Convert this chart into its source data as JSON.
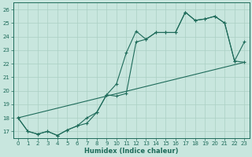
{
  "xlabel": "Humidex (Indice chaleur)",
  "bg_color": "#c8e6de",
  "line_color": "#1e6b5a",
  "grid_color": "#aad0c4",
  "xlim": [
    -0.5,
    23.5
  ],
  "ylim": [
    16.5,
    26.5
  ],
  "xticks": [
    0,
    1,
    2,
    3,
    4,
    5,
    6,
    7,
    8,
    9,
    10,
    11,
    12,
    13,
    14,
    15,
    16,
    17,
    18,
    19,
    20,
    21,
    22,
    23
  ],
  "yticks": [
    17,
    18,
    19,
    20,
    21,
    22,
    23,
    24,
    25,
    26
  ],
  "line_jagged1": {
    "x": [
      0,
      1,
      2,
      3,
      4,
      5,
      6,
      7,
      8,
      9,
      10,
      11,
      12,
      13,
      14,
      15,
      16,
      17,
      18,
      19,
      20,
      21,
      22,
      23
    ],
    "y": [
      18.0,
      17.0,
      16.8,
      17.0,
      16.7,
      17.1,
      17.4,
      18.0,
      18.4,
      19.7,
      20.5,
      22.8,
      24.4,
      23.8,
      24.3,
      24.3,
      24.3,
      25.8,
      25.2,
      25.3,
      25.5,
      25.0,
      22.2,
      22.1
    ]
  },
  "line_jagged2": {
    "x": [
      0,
      1,
      2,
      3,
      4,
      5,
      6,
      7,
      8,
      9,
      10,
      11,
      12,
      13,
      14,
      15,
      16,
      17,
      18,
      19,
      20,
      21,
      22,
      23
    ],
    "y": [
      18.0,
      17.0,
      16.8,
      17.0,
      16.7,
      17.1,
      17.4,
      17.6,
      18.4,
      19.7,
      19.6,
      19.8,
      23.6,
      23.8,
      24.3,
      24.3,
      24.3,
      25.8,
      25.2,
      25.3,
      25.5,
      25.0,
      22.2,
      23.6
    ]
  },
  "line_straight": {
    "x": [
      0,
      23
    ],
    "y": [
      18.0,
      22.1
    ]
  }
}
